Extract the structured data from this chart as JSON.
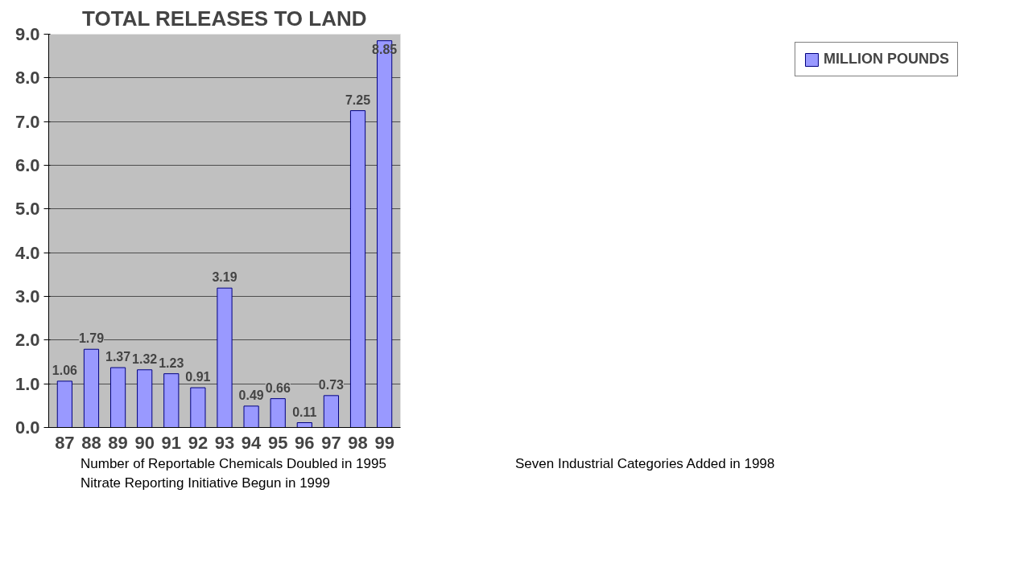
{
  "chart_data": {
    "type": "bar",
    "title": "TOTAL RELEASES TO LAND",
    "categories": [
      "87",
      "88",
      "89",
      "90",
      "91",
      "92",
      "93",
      "94",
      "95",
      "96",
      "97",
      "98",
      "99"
    ],
    "series": [
      {
        "name": "MILLION POUNDS",
        "color": "#9999ff",
        "values": [
          1.06,
          1.79,
          1.37,
          1.32,
          1.23,
          0.91,
          3.19,
          0.49,
          0.66,
          0.11,
          0.73,
          7.25,
          8.85
        ]
      }
    ],
    "ylim": [
      0,
      9
    ],
    "yticks": [
      {
        "value": 0,
        "label": "0.0"
      },
      {
        "value": 1,
        "label": "1.0"
      },
      {
        "value": 2,
        "label": "2.0"
      },
      {
        "value": 3,
        "label": "3.0"
      },
      {
        "value": 4,
        "label": "4.0"
      },
      {
        "value": 5,
        "label": "5.0"
      },
      {
        "value": 6,
        "label": "6.0"
      },
      {
        "value": 7,
        "label": "7.0"
      },
      {
        "value": 8,
        "label": "8.0"
      },
      {
        "value": 9,
        "label": "9.0"
      }
    ],
    "grid": "y",
    "legend": "right",
    "data_labels": true,
    "annotations": [
      "Number of Reportable Chemicals Doubled in 1995",
      "Seven Industrial Categories Added in 1998",
      "Nitrate Reporting Initiative Begun in 1999"
    ]
  }
}
